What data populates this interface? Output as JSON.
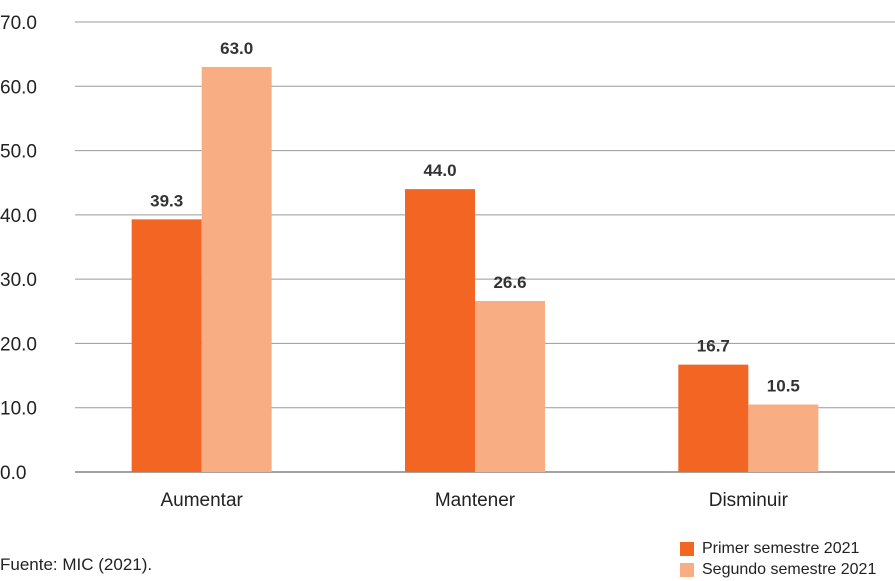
{
  "chart_data": {
    "type": "bar",
    "categories": [
      "Aumentar",
      "Mantener",
      "Disminuir"
    ],
    "series": [
      {
        "name": "Primer semestre 2021",
        "values": [
          39.3,
          44.0,
          16.7
        ],
        "color": "#f26522"
      },
      {
        "name": "Segundo semestre 2021",
        "values": [
          63.0,
          26.6,
          10.5
        ],
        "color": "#f9ad83"
      }
    ],
    "ylim": [
      0,
      70
    ],
    "yticks": [
      "0.0",
      "10.0",
      "20.0",
      "30.0",
      "40.0",
      "50.0",
      "60.0",
      "70.0"
    ],
    "value_labels": [
      [
        "39.3",
        "44.0",
        "16.7"
      ],
      [
        "63.0",
        "26.6",
        "10.5"
      ]
    ],
    "grid": true,
    "legend_position": "bottom-right",
    "title": "",
    "xlabel": "",
    "ylabel": ""
  },
  "source": "Fuente: MIC (2021)."
}
